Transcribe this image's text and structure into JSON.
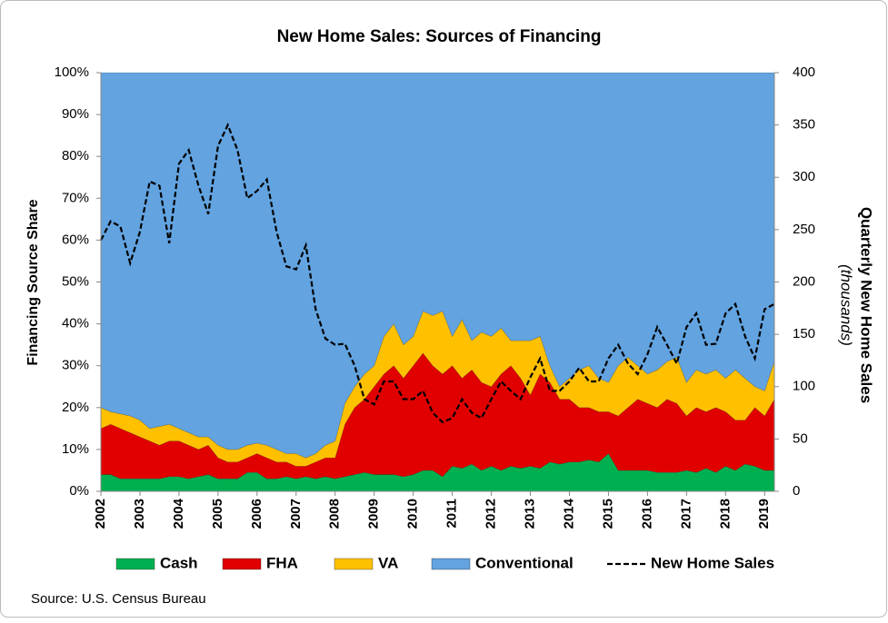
{
  "chart_data": {
    "type": "area",
    "title": "New Home Sales: Sources of Financing",
    "y_label": "Financing Source Share",
    "y2_label": "Quarterly New Home Sales",
    "y2_sublabel": "(thousands)",
    "source": "Source: U.S. Census Bureau",
    "categories": [
      "2002",
      null,
      null,
      null,
      "2003",
      null,
      null,
      null,
      "2004",
      null,
      null,
      null,
      "2005",
      null,
      null,
      null,
      "2006",
      null,
      null,
      null,
      "2007",
      null,
      null,
      null,
      "2008",
      null,
      null,
      null,
      "2009",
      null,
      null,
      null,
      "2010",
      null,
      null,
      null,
      "2011",
      null,
      null,
      null,
      "2012",
      null,
      null,
      null,
      "2013",
      null,
      null,
      null,
      "2014",
      null,
      null,
      null,
      "2015",
      null,
      null,
      null,
      "2016",
      null,
      null,
      null,
      "2017",
      null,
      null,
      null,
      "2018",
      null,
      null,
      null,
      "2019",
      null
    ],
    "ylim": [
      0,
      100
    ],
    "yticks": [
      {
        "value": 0,
        "label": "0%"
      },
      {
        "value": 10,
        "label": "10%"
      },
      {
        "value": 20,
        "label": "20%"
      },
      {
        "value": 30,
        "label": "30%"
      },
      {
        "value": 40,
        "label": "40%"
      },
      {
        "value": 50,
        "label": "50%"
      },
      {
        "value": 60,
        "label": "60%"
      },
      {
        "value": 70,
        "label": "70%"
      },
      {
        "value": 80,
        "label": "80%"
      },
      {
        "value": 90,
        "label": "90%"
      },
      {
        "value": 100,
        "label": "100%"
      }
    ],
    "y2lim": [
      0,
      400
    ],
    "y2ticks": [
      0,
      50,
      100,
      150,
      200,
      250,
      300,
      350,
      400
    ],
    "stacked": true,
    "series": [
      {
        "name": "Cash",
        "color": "#00b050",
        "values": [
          4,
          4,
          3,
          3,
          3,
          3,
          3,
          3.5,
          3.5,
          3,
          3.5,
          4,
          3,
          3,
          3,
          4.5,
          4.5,
          3,
          3,
          3.5,
          3,
          3.5,
          3,
          3.5,
          3,
          3.5,
          4,
          4.5,
          4,
          4,
          4,
          3.5,
          4,
          5,
          5,
          3.5,
          6,
          5.5,
          6.5,
          5,
          6,
          5,
          6,
          5.5,
          6,
          5.5,
          7,
          6.5,
          7,
          7,
          7.5,
          7,
          9,
          5,
          5,
          5,
          5,
          4.5,
          4.5,
          4.5,
          5,
          4.5,
          5.5,
          4.5,
          6,
          5,
          6.5,
          6,
          5,
          5
        ]
      },
      {
        "name": "FHA",
        "color": "#e00000",
        "values": [
          11,
          12,
          12,
          11,
          10,
          9,
          8,
          8.5,
          8.5,
          8,
          6.5,
          7,
          5,
          4,
          4,
          3.5,
          4.5,
          5,
          4,
          3.5,
          3,
          2.5,
          4,
          4.5,
          5,
          12.5,
          16,
          17.5,
          21,
          24,
          26,
          23.5,
          26,
          28,
          25,
          24.5,
          24,
          21.5,
          22.5,
          21,
          19,
          23,
          24,
          21.5,
          17,
          22.5,
          19,
          15.5,
          15,
          13,
          12.5,
          12,
          10,
          13,
          15,
          17,
          16,
          15.5,
          17.5,
          16.5,
          13,
          15.5,
          13.5,
          15.5,
          13,
          12,
          10.5,
          14,
          13,
          17
        ]
      },
      {
        "name": "VA",
        "color": "#ffc000",
        "values": [
          5,
          3,
          3.5,
          4,
          4,
          3,
          4.5,
          4,
          3,
          3,
          3,
          2,
          3,
          3,
          3,
          3,
          2.5,
          3,
          3,
          2,
          3,
          2,
          2,
          3,
          4,
          5,
          5,
          6,
          5,
          9,
          10,
          8,
          7,
          10,
          12,
          15,
          7,
          14,
          7,
          12,
          12,
          11,
          6,
          9,
          13,
          9,
          4,
          3,
          5,
          9,
          10,
          8,
          7,
          12,
          12,
          8,
          7,
          9,
          9,
          11,
          8,
          9,
          9,
          9,
          8,
          12,
          10,
          5,
          6,
          9
        ]
      },
      {
        "name": "Conventional",
        "color": "#62a3e0",
        "values": [
          80,
          81,
          81.5,
          82,
          83,
          85,
          84.5,
          84,
          85,
          86,
          87,
          87,
          89,
          90,
          90,
          89,
          88.5,
          89,
          90,
          91,
          91,
          92,
          91,
          89,
          88,
          79,
          75,
          72,
          70,
          63,
          60,
          65,
          63,
          57,
          58,
          57,
          63,
          59,
          64,
          62,
          63,
          61,
          64,
          64,
          64,
          63,
          70,
          75,
          73,
          71,
          70,
          73,
          74,
          70,
          68,
          70,
          72,
          71,
          69,
          68,
          74,
          71,
          72,
          71,
          73,
          71,
          73,
          75,
          76,
          69
        ]
      },
      {
        "name": "New Home Sales",
        "color": "#000000",
        "axis": "y2",
        "type": "line",
        "linestyle": "dashed",
        "values": [
          240,
          258,
          253,
          218,
          248,
          296,
          292,
          237,
          313,
          326,
          292,
          265,
          330,
          350,
          326,
          280,
          287,
          298,
          248,
          215,
          212,
          235,
          174,
          146,
          140,
          141,
          120,
          88,
          83,
          105,
          105,
          88,
          88,
          96,
          75,
          66,
          70,
          88,
          75,
          70,
          88,
          105,
          96,
          88,
          109,
          127,
          96,
          96,
          105,
          118,
          105,
          105,
          127,
          140,
          122,
          112,
          131,
          157,
          140,
          122,
          157,
          170,
          140,
          141,
          170,
          179,
          148,
          127,
          174,
          179
        ]
      }
    ]
  }
}
